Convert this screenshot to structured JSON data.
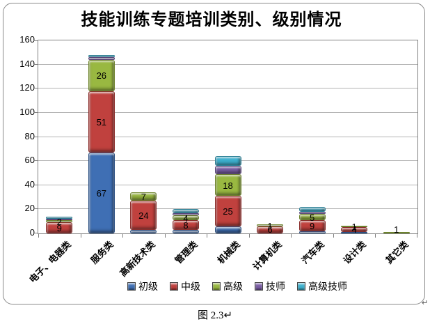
{
  "figure": {
    "caption": "图 2.3↵",
    "paragraph_mark": "↵"
  },
  "chart_data": {
    "type": "bar",
    "stacked": true,
    "title": "技能训练专题培训类别、级别情况",
    "xlabel": "",
    "ylabel": "",
    "ylim": [
      0,
      160
    ],
    "ytick_step": 20,
    "grid": true,
    "legend_position": "bottom",
    "categories": [
      "电子、电器类",
      "服务类",
      "高新技术类",
      "管理类",
      "机械类",
      "计算机类",
      "汽车类",
      "设计类",
      "其它类"
    ],
    "series": [
      {
        "name": "初级",
        "color": "#3F6FB4",
        "values": [
          0,
          67,
          3,
          3,
          6,
          0,
          2,
          1,
          0
        ],
        "show_label": [
          0,
          1,
          0,
          0,
          0,
          0,
          0,
          0,
          0
        ]
      },
      {
        "name": "中级",
        "color": "#C0413E",
        "values": [
          9,
          51,
          24,
          8,
          25,
          6,
          9,
          4,
          0
        ],
        "show_label": [
          1,
          1,
          1,
          1,
          1,
          1,
          1,
          1,
          0
        ]
      },
      {
        "name": "高级",
        "color": "#99B841",
        "values": [
          2,
          26,
          7,
          4,
          18,
          1,
          5,
          1,
          1
        ],
        "show_label": [
          1,
          1,
          1,
          1,
          1,
          1,
          1,
          1,
          1
        ]
      },
      {
        "name": "技师",
        "color": "#7A5DA5",
        "values": [
          1,
          2,
          0,
          2,
          7,
          0,
          2,
          0,
          0
        ],
        "show_label": [
          0,
          0,
          0,
          0,
          0,
          0,
          0,
          0,
          0
        ]
      },
      {
        "name": "高级技师",
        "color": "#3EB1CF",
        "values": [
          2,
          2,
          0,
          3,
          8,
          0,
          4,
          0,
          0
        ],
        "show_label": [
          0,
          0,
          0,
          0,
          0,
          0,
          0,
          0,
          0
        ]
      }
    ],
    "axis_colors": {
      "gridline": "#b3b3b3",
      "plot_border": "#7f7f7f"
    }
  }
}
